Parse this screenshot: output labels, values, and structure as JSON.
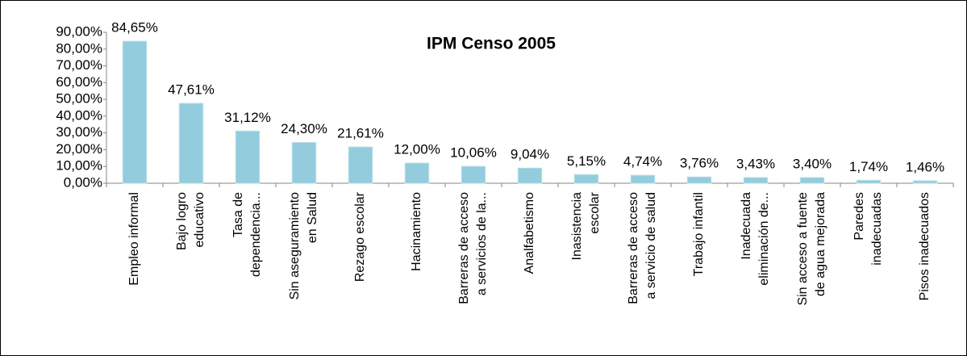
{
  "chart_data": {
    "type": "bar",
    "title": "IPM Censo 2005",
    "categories": [
      "Empleo informal",
      "Bajo logro\neducativo",
      "Tasa de\ndependencia...",
      "Sin aseguramiento\nen Salud",
      "Rezago escolar",
      "Hacinamiento",
      "Barreras de acceso\na servicios de la...",
      "Analfabetismo",
      "Inasistencia\nescolar",
      "Barreras de acceso\na servicio de salud",
      "Trabajo infantil",
      "Inadecuada\neliminación de...",
      "Sin acceso a fuente\nde agua mejorada",
      "Paredes\ninadecuadas",
      "Pisos inadecuados"
    ],
    "values": [
      84.65,
      47.61,
      31.12,
      24.3,
      21.61,
      12.0,
      10.06,
      9.04,
      5.15,
      4.74,
      3.76,
      3.43,
      3.4,
      1.74,
      1.46
    ],
    "value_labels": [
      "84,65%",
      "47,61%",
      "31,12%",
      "24,30%",
      "21,61%",
      "12,00%",
      "10,06%",
      "9,04%",
      "5,15%",
      "4,74%",
      "3,76%",
      "3,43%",
      "3,40%",
      "1,74%",
      "1,46%"
    ],
    "color": "#93cddd",
    "ylim": [
      0,
      90
    ],
    "yticks": [
      {
        "value": 0,
        "label": "0,00%"
      },
      {
        "value": 10,
        "label": "10,00%"
      },
      {
        "value": 20,
        "label": "20,00%"
      },
      {
        "value": 30,
        "label": "30,00%"
      },
      {
        "value": 40,
        "label": "40,00%"
      },
      {
        "value": 50,
        "label": "50,00%"
      },
      {
        "value": 60,
        "label": "60,00%"
      },
      {
        "value": 70,
        "label": "70,00%"
      },
      {
        "value": 80,
        "label": "80,00%"
      },
      {
        "value": 90,
        "label": "90,00%"
      }
    ],
    "grid": false
  }
}
